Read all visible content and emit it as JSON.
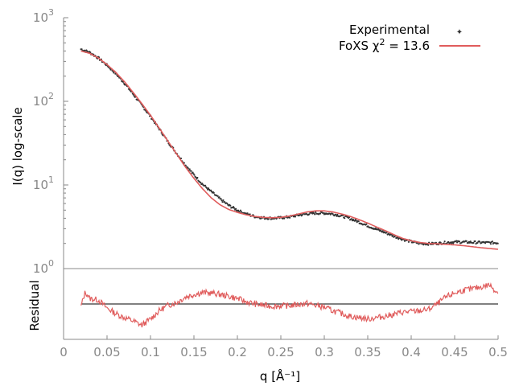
{
  "chart_data": [
    {
      "type": "scatter",
      "xlabel": "q [Å⁻¹]",
      "ylabel": "I(q) log-scale",
      "yscale": "log",
      "xlim": [
        0,
        0.5
      ],
      "ylim": [
        1,
        1000
      ],
      "x_ticks": [
        "0",
        "0.05",
        "0.1",
        "0.15",
        "0.2",
        "0.25",
        "0.3",
        "0.35",
        "0.4",
        "0.45",
        "0.5"
      ],
      "y_ticks": [
        {
          "base": "10",
          "exp": "0",
          "value": 1
        },
        {
          "base": "10",
          "exp": "1",
          "value": 10
        },
        {
          "base": "10",
          "exp": "2",
          "value": 100
        },
        {
          "base": "10",
          "exp": "3",
          "value": 1000
        }
      ],
      "legend_position": "top-right",
      "grid": false,
      "series": [
        {
          "name": "Experimental",
          "style": "points",
          "color": "#333333",
          "points": [
            [
              0.02,
              420
            ],
            [
              0.03,
              385
            ],
            [
              0.04,
              330
            ],
            [
              0.05,
              270
            ],
            [
              0.06,
              215
            ],
            [
              0.07,
              165
            ],
            [
              0.08,
              122
            ],
            [
              0.09,
              90
            ],
            [
              0.1,
              66
            ],
            [
              0.11,
              47
            ],
            [
              0.12,
              33
            ],
            [
              0.13,
              24
            ],
            [
              0.14,
              17.5
            ],
            [
              0.15,
              13.2
            ],
            [
              0.16,
              10.2
            ],
            [
              0.17,
              8.3
            ],
            [
              0.18,
              6.8
            ],
            [
              0.19,
              5.7
            ],
            [
              0.2,
              5.0
            ],
            [
              0.21,
              4.5
            ],
            [
              0.22,
              4.2
            ],
            [
              0.23,
              4.05
            ],
            [
              0.24,
              4.0
            ],
            [
              0.25,
              4.05
            ],
            [
              0.26,
              4.15
            ],
            [
              0.27,
              4.35
            ],
            [
              0.28,
              4.5
            ],
            [
              0.29,
              4.6
            ],
            [
              0.3,
              4.6
            ],
            [
              0.31,
              4.5
            ],
            [
              0.32,
              4.25
            ],
            [
              0.33,
              3.95
            ],
            [
              0.34,
              3.6
            ],
            [
              0.35,
              3.25
            ],
            [
              0.36,
              2.95
            ],
            [
              0.37,
              2.7
            ],
            [
              0.38,
              2.45
            ],
            [
              0.39,
              2.25
            ],
            [
              0.4,
              2.1
            ],
            [
              0.41,
              2.0
            ],
            [
              0.42,
              1.98
            ],
            [
              0.43,
              2.0
            ],
            [
              0.44,
              2.05
            ],
            [
              0.45,
              2.08
            ],
            [
              0.46,
              2.08
            ],
            [
              0.47,
              2.06
            ],
            [
              0.48,
              2.05
            ],
            [
              0.49,
              2.04
            ],
            [
              0.5,
              2.03
            ]
          ]
        },
        {
          "name": "FoXS χ² = 13.6",
          "name_main": "FoXS χ",
          "name_sup": "2",
          "name_tail": " = 13.6",
          "style": "line",
          "color": "#e05c5c",
          "points": [
            [
              0.02,
              400
            ],
            [
              0.03,
              375
            ],
            [
              0.04,
              330
            ],
            [
              0.05,
              275
            ],
            [
              0.06,
              222
            ],
            [
              0.07,
              172
            ],
            [
              0.08,
              128
            ],
            [
              0.09,
              94
            ],
            [
              0.1,
              68
            ],
            [
              0.11,
              48
            ],
            [
              0.12,
              33.5
            ],
            [
              0.13,
              23.5
            ],
            [
              0.14,
              16.5
            ],
            [
              0.15,
              12.0
            ],
            [
              0.16,
              9.0
            ],
            [
              0.17,
              7.0
            ],
            [
              0.18,
              5.8
            ],
            [
              0.19,
              5.1
            ],
            [
              0.2,
              4.7
            ],
            [
              0.21,
              4.4
            ],
            [
              0.22,
              4.2
            ],
            [
              0.23,
              4.1
            ],
            [
              0.24,
              4.05
            ],
            [
              0.25,
              4.1
            ],
            [
              0.26,
              4.25
            ],
            [
              0.27,
              4.5
            ],
            [
              0.28,
              4.75
            ],
            [
              0.29,
              4.9
            ],
            [
              0.3,
              4.9
            ],
            [
              0.31,
              4.75
            ],
            [
              0.32,
              4.5
            ],
            [
              0.33,
              4.2
            ],
            [
              0.34,
              3.85
            ],
            [
              0.35,
              3.5
            ],
            [
              0.36,
              3.15
            ],
            [
              0.37,
              2.85
            ],
            [
              0.38,
              2.55
            ],
            [
              0.39,
              2.3
            ],
            [
              0.4,
              2.15
            ],
            [
              0.41,
              2.05
            ],
            [
              0.42,
              2.0
            ],
            [
              0.43,
              1.98
            ],
            [
              0.44,
              1.95
            ],
            [
              0.45,
              1.92
            ],
            [
              0.46,
              1.88
            ],
            [
              0.47,
              1.83
            ],
            [
              0.48,
              1.78
            ],
            [
              0.49,
              1.74
            ],
            [
              0.5,
              1.7
            ]
          ]
        }
      ]
    },
    {
      "type": "line",
      "xlabel": "q [Å⁻¹]",
      "ylabel": "Residual",
      "xlim": [
        0,
        0.5
      ],
      "ylim": [
        -1,
        1
      ],
      "x_ticks": [
        "0",
        "0.05",
        "0.1",
        "0.15",
        "0.2",
        "0.25",
        "0.3",
        "0.35",
        "0.4",
        "0.45",
        "0.5"
      ],
      "grid": false,
      "baseline": 0,
      "series": [
        {
          "style": "line",
          "color": "#e05c5c",
          "points": [
            [
              0.02,
              -0.1
            ],
            [
              0.025,
              0.45
            ],
            [
              0.03,
              0.2
            ],
            [
              0.04,
              0.15
            ],
            [
              0.05,
              -0.15
            ],
            [
              0.06,
              -0.35
            ],
            [
              0.07,
              -0.5
            ],
            [
              0.08,
              -0.62
            ],
            [
              0.09,
              -0.78
            ],
            [
              0.1,
              -0.55
            ],
            [
              0.11,
              -0.25
            ],
            [
              0.12,
              -0.05
            ],
            [
              0.13,
              0.05
            ],
            [
              0.14,
              0.25
            ],
            [
              0.15,
              0.35
            ],
            [
              0.16,
              0.42
            ],
            [
              0.17,
              0.4
            ],
            [
              0.18,
              0.35
            ],
            [
              0.19,
              0.28
            ],
            [
              0.2,
              0.2
            ],
            [
              0.21,
              0.08
            ],
            [
              0.22,
              0.0
            ],
            [
              0.23,
              -0.05
            ],
            [
              0.24,
              -0.08
            ],
            [
              0.25,
              -0.07
            ],
            [
              0.26,
              -0.06
            ],
            [
              0.27,
              -0.02
            ],
            [
              0.28,
              0.02
            ],
            [
              0.29,
              -0.05
            ],
            [
              0.3,
              -0.12
            ],
            [
              0.31,
              -0.25
            ],
            [
              0.32,
              -0.35
            ],
            [
              0.33,
              -0.45
            ],
            [
              0.34,
              -0.5
            ],
            [
              0.35,
              -0.55
            ],
            [
              0.36,
              -0.5
            ],
            [
              0.37,
              -0.45
            ],
            [
              0.38,
              -0.38
            ],
            [
              0.39,
              -0.3
            ],
            [
              0.4,
              -0.28
            ],
            [
              0.41,
              -0.25
            ],
            [
              0.42,
              -0.2
            ],
            [
              0.43,
              0.0
            ],
            [
              0.44,
              0.25
            ],
            [
              0.45,
              0.4
            ],
            [
              0.46,
              0.5
            ],
            [
              0.47,
              0.55
            ],
            [
              0.48,
              0.62
            ],
            [
              0.49,
              0.7
            ],
            [
              0.5,
              0.4
            ]
          ]
        }
      ]
    }
  ]
}
